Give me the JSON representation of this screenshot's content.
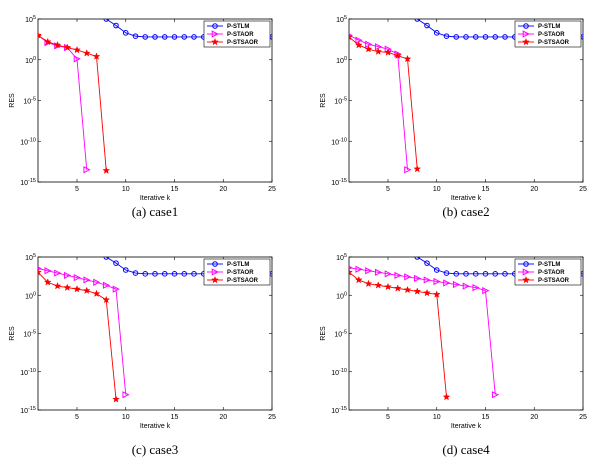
{
  "chart_data": [
    {
      "type": "line",
      "caption": "(a)  case1",
      "xlabel": "Iterative k",
      "ylabel": "RES",
      "xlim": [
        1,
        25
      ],
      "ylim_exp": [
        -15,
        5
      ],
      "yscale": "log",
      "xticks": [
        "5",
        "10",
        "15",
        "20",
        "25"
      ],
      "yticks": [
        "10^5",
        "10^0",
        "10^-5",
        "10^-10",
        "10^-15"
      ],
      "legend_position": "top-right",
      "series": [
        {
          "name": "P-STLM",
          "color": "#0000ff",
          "marker": "circle",
          "x": [
            8,
            9,
            10,
            11,
            12,
            13,
            14,
            15,
            16,
            17,
            18,
            19,
            20,
            21,
            22,
            23,
            24,
            25
          ],
          "y_exp": [
            5,
            4.2,
            3.3,
            2.9,
            2.8,
            2.8,
            2.8,
            2.8,
            2.8,
            2.8,
            2.8,
            2.8,
            2.8,
            2.8,
            2.8,
            2.8,
            2.8,
            2.8
          ]
        },
        {
          "name": "P-STAOR",
          "color": "#ff00ff",
          "marker": "triangle-right",
          "x": [
            1,
            2,
            3,
            4,
            5,
            6
          ],
          "y_exp": [
            3.0,
            2.1,
            1.7,
            1.5,
            0.1,
            -13.5
          ]
        },
        {
          "name": "P-STSAOR",
          "color": "#ff0000",
          "marker": "star",
          "x": [
            1,
            2,
            3,
            4,
            5,
            6,
            7,
            8
          ],
          "y_exp": [
            3.0,
            2.2,
            1.8,
            1.5,
            1.2,
            0.8,
            0.4,
            -13.6
          ]
        }
      ]
    },
    {
      "type": "line",
      "caption": "(b)  case2",
      "xlabel": "Iterative k",
      "ylabel": "RES",
      "xlim": [
        1,
        25
      ],
      "ylim_exp": [
        -15,
        5
      ],
      "yscale": "log",
      "xticks": [
        "5",
        "10",
        "15",
        "20",
        "25"
      ],
      "yticks": [
        "10^5",
        "10^0",
        "10^-5",
        "10^-10",
        "10^-15"
      ],
      "legend_position": "top-right",
      "series": [
        {
          "name": "P-STLM",
          "color": "#0000ff",
          "marker": "circle",
          "x": [
            8,
            9,
            10,
            11,
            12,
            13,
            14,
            15,
            16,
            17,
            18,
            19,
            20,
            21,
            22,
            23,
            24,
            25
          ],
          "y_exp": [
            5,
            4.2,
            3.3,
            2.9,
            2.8,
            2.8,
            2.8,
            2.8,
            2.8,
            2.8,
            2.8,
            2.8,
            2.8,
            2.8,
            2.8,
            2.8,
            2.8,
            2.8
          ]
        },
        {
          "name": "P-STAOR",
          "color": "#ff00ff",
          "marker": "triangle-right",
          "x": [
            1,
            2,
            3,
            4,
            5,
            6,
            7
          ],
          "y_exp": [
            3.0,
            2.4,
            1.9,
            1.6,
            1.3,
            0.7,
            -13.5
          ]
        },
        {
          "name": "P-STSAOR",
          "color": "#ff0000",
          "marker": "star",
          "x": [
            1,
            2,
            3,
            4,
            5,
            6,
            7,
            8
          ],
          "y_exp": [
            2.8,
            1.8,
            1.3,
            1.0,
            0.9,
            0.5,
            0.1,
            -13.4
          ]
        }
      ]
    },
    {
      "type": "line",
      "caption": "(c)  case3",
      "xlabel": "Iterative k",
      "ylabel": "RES",
      "xlim": [
        1,
        25
      ],
      "ylim_exp": [
        -15,
        5
      ],
      "yscale": "log",
      "xticks": [
        "5",
        "10",
        "15",
        "20",
        "25"
      ],
      "yticks": [
        "10^5",
        "10^0",
        "10^-5",
        "10^-10",
        "10^-15"
      ],
      "legend_position": "top-right",
      "series": [
        {
          "name": "P-STLM",
          "color": "#0000ff",
          "marker": "circle",
          "x": [
            8,
            9,
            10,
            11,
            12,
            13,
            14,
            15,
            16,
            17,
            18,
            19,
            20,
            21,
            22,
            23,
            24,
            25
          ],
          "y_exp": [
            5,
            4.2,
            3.3,
            2.9,
            2.8,
            2.8,
            2.8,
            2.8,
            2.8,
            2.8,
            2.8,
            2.8,
            2.8,
            2.8,
            2.8,
            2.8,
            2.8,
            2.8
          ]
        },
        {
          "name": "P-STAOR",
          "color": "#ff00ff",
          "marker": "triangle-right",
          "x": [
            1,
            2,
            3,
            4,
            5,
            6,
            7,
            8,
            9,
            10
          ],
          "y_exp": [
            3.5,
            3.2,
            2.9,
            2.6,
            2.3,
            2.0,
            1.7,
            1.3,
            0.8,
            -13.0
          ]
        },
        {
          "name": "P-STSAOR",
          "color": "#ff0000",
          "marker": "star",
          "x": [
            1,
            2,
            3,
            4,
            5,
            6,
            7,
            8,
            9
          ],
          "y_exp": [
            3.0,
            1.7,
            1.2,
            1.0,
            0.8,
            0.6,
            0.2,
            -0.6,
            -13.6
          ]
        }
      ]
    },
    {
      "type": "line",
      "caption": "(d)  case4",
      "xlabel": "Iterative k",
      "ylabel": "RES",
      "xlim": [
        1,
        25
      ],
      "ylim_exp": [
        -15,
        5
      ],
      "yscale": "log",
      "xticks": [
        "5",
        "10",
        "15",
        "20",
        "25"
      ],
      "yticks": [
        "10^5",
        "10^0",
        "10^-5",
        "10^-10",
        "10^-15"
      ],
      "legend_position": "top-right",
      "series": [
        {
          "name": "P-STLM",
          "color": "#0000ff",
          "marker": "circle",
          "x": [
            8,
            9,
            10,
            11,
            12,
            13,
            14,
            15,
            16,
            17,
            18,
            19,
            20,
            21,
            22,
            23,
            24,
            25
          ],
          "y_exp": [
            5,
            4.2,
            3.3,
            2.9,
            2.8,
            2.8,
            2.8,
            2.8,
            2.8,
            2.8,
            2.8,
            2.8,
            2.8,
            2.8,
            2.8,
            2.8,
            2.8,
            2.8
          ]
        },
        {
          "name": "P-STAOR",
          "color": "#ff00ff",
          "marker": "triangle-right",
          "x": [
            1,
            2,
            3,
            4,
            5,
            6,
            7,
            8,
            9,
            10,
            11,
            12,
            13,
            14,
            15,
            16
          ],
          "y_exp": [
            3.6,
            3.4,
            3.2,
            3.0,
            2.8,
            2.6,
            2.4,
            2.2,
            2.0,
            1.8,
            1.6,
            1.4,
            1.2,
            1.0,
            0.6,
            -13.0
          ]
        },
        {
          "name": "P-STSAOR",
          "color": "#ff0000",
          "marker": "star",
          "x": [
            1,
            2,
            3,
            4,
            5,
            6,
            7,
            8,
            9,
            10,
            11
          ],
          "y_exp": [
            3.0,
            2.0,
            1.5,
            1.3,
            1.1,
            0.9,
            0.7,
            0.5,
            0.3,
            0.1,
            -13.3
          ]
        }
      ]
    }
  ]
}
